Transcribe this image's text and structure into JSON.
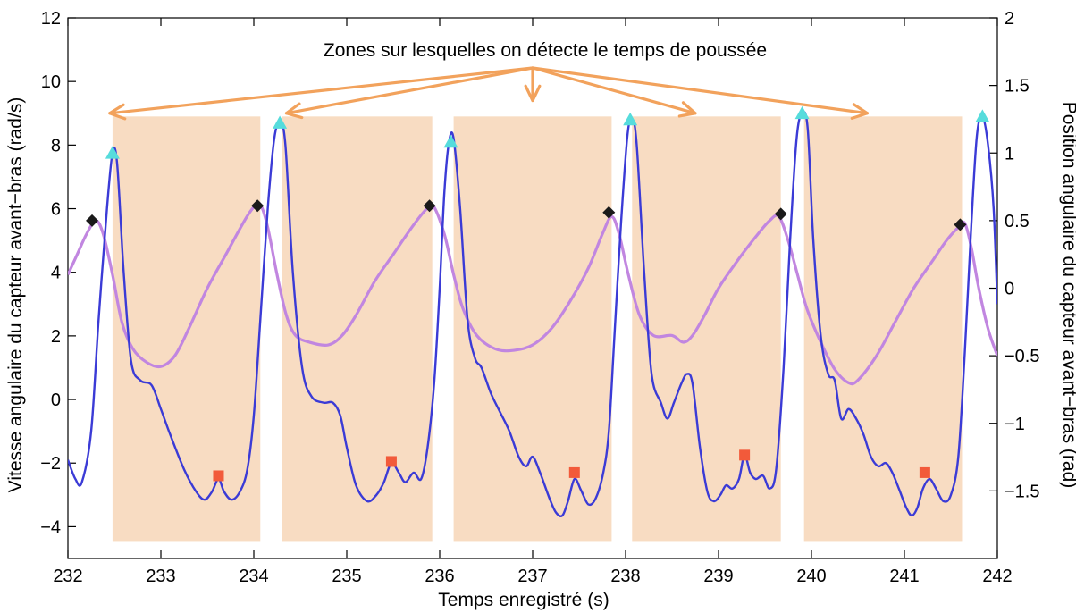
{
  "chart_data": {
    "type": "line",
    "annotation": "Zones sur lesquelles on détecte le temps de poussée",
    "xlabel": "Temps enregistré (s)",
    "ylabel_left": "Vitesse angulaire du capteur avant−bras (rad/s)",
    "ylabel_right": "Position angulaire du capteur avant−bras (rad)",
    "xlim": [
      232,
      242
    ],
    "ylim_left": [
      -5,
      12
    ],
    "ylim_right": [
      -2,
      2
    ],
    "x_ticks": [
      232,
      233,
      234,
      235,
      236,
      237,
      238,
      239,
      240,
      241,
      242
    ],
    "x_tick_labels": [
      "232",
      "233",
      "234",
      "235",
      "236",
      "237",
      "238",
      "239",
      "240",
      "241",
      "242"
    ],
    "y_left_ticks": [
      -4,
      -2,
      0,
      2,
      4,
      6,
      8,
      10,
      12
    ],
    "y_left_tick_labels": [
      "−4",
      "−2",
      "0",
      "2",
      "4",
      "6",
      "8",
      "10",
      "12"
    ],
    "y_right_ticks": [
      -1.5,
      -1,
      -0.5,
      0,
      0.5,
      1,
      1.5,
      2
    ],
    "y_right_tick_labels": [
      "−1.5",
      "−1",
      "−0.5",
      "0",
      "0.5",
      "1",
      "1.5",
      "2"
    ],
    "colors": {
      "velocity": "#3b3bd6",
      "position": "#c186e0",
      "zone": "#f8dcc2",
      "arrow": "#f2a25c",
      "peak_marker": "#56dcdc",
      "min_marker": "#f25a3a",
      "pos_max_marker": "#1a1a1a"
    },
    "zones": [
      {
        "x_start": 232.48,
        "x_end": 234.07,
        "y_bottom": -4.45,
        "y_top": 8.9
      },
      {
        "x_start": 234.3,
        "x_end": 235.92,
        "y_bottom": -4.45,
        "y_top": 8.9
      },
      {
        "x_start": 236.15,
        "x_end": 237.85,
        "y_bottom": -4.45,
        "y_top": 8.9
      },
      {
        "x_start": 238.07,
        "x_end": 239.67,
        "y_bottom": -4.45,
        "y_top": 8.9
      },
      {
        "x_start": 239.92,
        "x_end": 241.62,
        "y_bottom": -4.45,
        "y_top": 8.9
      }
    ],
    "series": [
      {
        "axis": "left",
        "points": [
          [
            232.0,
            -1.9
          ],
          [
            232.08,
            -2.5
          ],
          [
            232.15,
            -2.6
          ],
          [
            232.25,
            -1.0
          ],
          [
            232.33,
            2.5
          ],
          [
            232.42,
            6.0
          ],
          [
            232.48,
            7.75
          ],
          [
            232.53,
            7.4
          ],
          [
            232.6,
            4.0
          ],
          [
            232.68,
            1.2
          ],
          [
            232.78,
            0.6
          ],
          [
            232.9,
            0.45
          ],
          [
            233.0,
            -0.3
          ],
          [
            233.1,
            -1.1
          ],
          [
            233.25,
            -2.2
          ],
          [
            233.38,
            -2.9
          ],
          [
            233.47,
            -3.15
          ],
          [
            233.55,
            -2.9
          ],
          [
            233.62,
            -2.5
          ],
          [
            233.68,
            -2.9
          ],
          [
            233.76,
            -3.15
          ],
          [
            233.85,
            -2.9
          ],
          [
            233.93,
            -2.2
          ],
          [
            234.0,
            -0.5
          ],
          [
            234.07,
            2.5
          ],
          [
            234.15,
            6.0
          ],
          [
            234.22,
            8.2
          ],
          [
            234.28,
            8.7
          ],
          [
            234.34,
            8.0
          ],
          [
            234.42,
            4.0
          ],
          [
            234.52,
            1.0
          ],
          [
            234.62,
            0.1
          ],
          [
            234.75,
            -0.1
          ],
          [
            234.85,
            -0.1
          ],
          [
            234.93,
            -0.5
          ],
          [
            235.0,
            -1.5
          ],
          [
            235.1,
            -2.7
          ],
          [
            235.22,
            -3.2
          ],
          [
            235.32,
            -3.0
          ],
          [
            235.4,
            -2.6
          ],
          [
            235.48,
            -2.0
          ],
          [
            235.56,
            -2.3
          ],
          [
            235.63,
            -2.6
          ],
          [
            235.72,
            -2.3
          ],
          [
            235.8,
            -2.5
          ],
          [
            235.87,
            -1.5
          ],
          [
            235.94,
            0.5
          ],
          [
            236.0,
            3.5
          ],
          [
            236.05,
            6.5
          ],
          [
            236.1,
            8.1
          ],
          [
            236.15,
            8.2
          ],
          [
            236.22,
            6.0
          ],
          [
            236.3,
            2.5
          ],
          [
            236.38,
            1.3
          ],
          [
            236.45,
            1.0
          ],
          [
            236.55,
            0.2
          ],
          [
            236.65,
            -0.4
          ],
          [
            236.75,
            -1.0
          ],
          [
            236.85,
            -1.8
          ],
          [
            236.93,
            -2.1
          ],
          [
            237.0,
            -1.8
          ],
          [
            237.08,
            -2.3
          ],
          [
            237.18,
            -3.1
          ],
          [
            237.25,
            -3.55
          ],
          [
            237.32,
            -3.65
          ],
          [
            237.38,
            -3.2
          ],
          [
            237.45,
            -2.5
          ],
          [
            237.52,
            -2.85
          ],
          [
            237.6,
            -3.3
          ],
          [
            237.68,
            -3.1
          ],
          [
            237.76,
            -2.3
          ],
          [
            237.82,
            -1.0
          ],
          [
            237.88,
            2.0
          ],
          [
            237.95,
            5.5
          ],
          [
            238.02,
            8.3
          ],
          [
            238.07,
            8.8
          ],
          [
            238.12,
            8.0
          ],
          [
            238.2,
            4.0
          ],
          [
            238.28,
            0.8
          ],
          [
            238.38,
            -0.1
          ],
          [
            238.45,
            -0.6
          ],
          [
            238.52,
            -0.1
          ],
          [
            238.6,
            0.5
          ],
          [
            238.66,
            0.8
          ],
          [
            238.72,
            0.5
          ],
          [
            238.8,
            -1.5
          ],
          [
            238.88,
            -2.9
          ],
          [
            238.95,
            -3.2
          ],
          [
            239.02,
            -3.0
          ],
          [
            239.08,
            -2.7
          ],
          [
            239.15,
            -2.8
          ],
          [
            239.22,
            -2.5
          ],
          [
            239.28,
            -1.75
          ],
          [
            239.34,
            -2.3
          ],
          [
            239.4,
            -2.5
          ],
          [
            239.48,
            -2.4
          ],
          [
            239.55,
            -2.8
          ],
          [
            239.62,
            -2.2
          ],
          [
            239.7,
            1.0
          ],
          [
            239.77,
            5.0
          ],
          [
            239.84,
            8.2
          ],
          [
            239.9,
            9.0
          ],
          [
            239.96,
            8.5
          ],
          [
            240.02,
            5.0
          ],
          [
            240.1,
            2.0
          ],
          [
            240.18,
            0.8
          ],
          [
            240.25,
            0.6
          ],
          [
            240.32,
            -0.6
          ],
          [
            240.4,
            -0.3
          ],
          [
            240.48,
            -0.6
          ],
          [
            240.56,
            -1.1
          ],
          [
            240.64,
            -1.8
          ],
          [
            240.72,
            -2.1
          ],
          [
            240.8,
            -2.0
          ],
          [
            240.87,
            -2.3
          ],
          [
            240.94,
            -2.8
          ],
          [
            241.02,
            -3.4
          ],
          [
            241.08,
            -3.65
          ],
          [
            241.14,
            -3.4
          ],
          [
            241.2,
            -2.8
          ],
          [
            241.27,
            -2.5
          ],
          [
            241.34,
            -2.8
          ],
          [
            241.42,
            -3.2
          ],
          [
            241.5,
            -3.0
          ],
          [
            241.58,
            -1.8
          ],
          [
            241.65,
            1.5
          ],
          [
            241.72,
            5.5
          ],
          [
            241.78,
            8.3
          ],
          [
            241.84,
            8.9
          ],
          [
            241.9,
            8.0
          ],
          [
            241.96,
            6.0
          ],
          [
            242.0,
            3.0
          ]
        ]
      },
      {
        "axis": "right",
        "points": [
          [
            232.0,
            0.1
          ],
          [
            232.1,
            0.25
          ],
          [
            232.2,
            0.4
          ],
          [
            232.3,
            0.5
          ],
          [
            232.38,
            0.4
          ],
          [
            232.48,
            0.1
          ],
          [
            232.58,
            -0.25
          ],
          [
            232.7,
            -0.45
          ],
          [
            232.85,
            -0.55
          ],
          [
            233.0,
            -0.58
          ],
          [
            233.15,
            -0.5
          ],
          [
            233.3,
            -0.3
          ],
          [
            233.5,
            0.0
          ],
          [
            233.7,
            0.25
          ],
          [
            233.9,
            0.5
          ],
          [
            234.0,
            0.6
          ],
          [
            234.07,
            0.62
          ],
          [
            234.15,
            0.45
          ],
          [
            234.25,
            0.1
          ],
          [
            234.35,
            -0.2
          ],
          [
            234.45,
            -0.35
          ],
          [
            234.6,
            -0.4
          ],
          [
            234.8,
            -0.42
          ],
          [
            234.95,
            -0.35
          ],
          [
            235.1,
            -0.2
          ],
          [
            235.3,
            0.05
          ],
          [
            235.5,
            0.25
          ],
          [
            235.7,
            0.45
          ],
          [
            235.85,
            0.58
          ],
          [
            235.93,
            0.61
          ],
          [
            236.05,
            0.4
          ],
          [
            236.15,
            0.1
          ],
          [
            236.25,
            -0.15
          ],
          [
            236.4,
            -0.35
          ],
          [
            236.6,
            -0.45
          ],
          [
            236.8,
            -0.46
          ],
          [
            237.0,
            -0.42
          ],
          [
            237.2,
            -0.3
          ],
          [
            237.4,
            -0.1
          ],
          [
            237.6,
            0.15
          ],
          [
            237.75,
            0.4
          ],
          [
            237.85,
            0.53
          ],
          [
            237.93,
            0.4
          ],
          [
            238.03,
            0.1
          ],
          [
            238.15,
            -0.2
          ],
          [
            238.3,
            -0.35
          ],
          [
            238.5,
            -0.35
          ],
          [
            238.62,
            -0.4
          ],
          [
            238.72,
            -0.35
          ],
          [
            238.85,
            -0.2
          ],
          [
            239.0,
            0.0
          ],
          [
            239.2,
            0.2
          ],
          [
            239.4,
            0.38
          ],
          [
            239.55,
            0.5
          ],
          [
            239.65,
            0.53
          ],
          [
            239.75,
            0.35
          ],
          [
            239.85,
            0.1
          ],
          [
            239.95,
            -0.15
          ],
          [
            240.1,
            -0.4
          ],
          [
            240.25,
            -0.6
          ],
          [
            240.4,
            -0.7
          ],
          [
            240.5,
            -0.68
          ],
          [
            240.7,
            -0.5
          ],
          [
            240.9,
            -0.25
          ],
          [
            241.1,
            0.0
          ],
          [
            241.3,
            0.2
          ],
          [
            241.45,
            0.35
          ],
          [
            241.58,
            0.45
          ],
          [
            241.65,
            0.48
          ],
          [
            241.72,
            0.3
          ],
          [
            241.8,
            0.0
          ],
          [
            241.9,
            -0.3
          ],
          [
            242.0,
            -0.5
          ]
        ]
      }
    ],
    "peak_markers": [
      [
        232.48,
        7.75
      ],
      [
        234.28,
        8.7
      ],
      [
        236.12,
        8.1
      ],
      [
        238.05,
        8.8
      ],
      [
        239.9,
        9.0
      ],
      [
        241.84,
        8.9
      ]
    ],
    "min_markers": [
      [
        233.62,
        -2.4
      ],
      [
        235.48,
        -1.95
      ],
      [
        237.45,
        -2.3
      ],
      [
        239.28,
        -1.75
      ],
      [
        241.22,
        -2.3
      ]
    ],
    "pos_max_markers": [
      [
        232.26,
        0.5
      ],
      [
        234.04,
        0.61
      ],
      [
        235.89,
        0.61
      ],
      [
        237.82,
        0.56
      ],
      [
        239.67,
        0.55
      ],
      [
        241.6,
        0.47
      ]
    ],
    "annotation_arrows": [
      {
        "to_x": 232.45,
        "to_y": 9.0
      },
      {
        "to_x": 234.35,
        "to_y": 9.0
      },
      {
        "to_x": 237.0,
        "to_y": 9.4
      },
      {
        "to_x": 238.75,
        "to_y": 9.0
      },
      {
        "to_x": 240.6,
        "to_y": 9.0
      }
    ]
  }
}
